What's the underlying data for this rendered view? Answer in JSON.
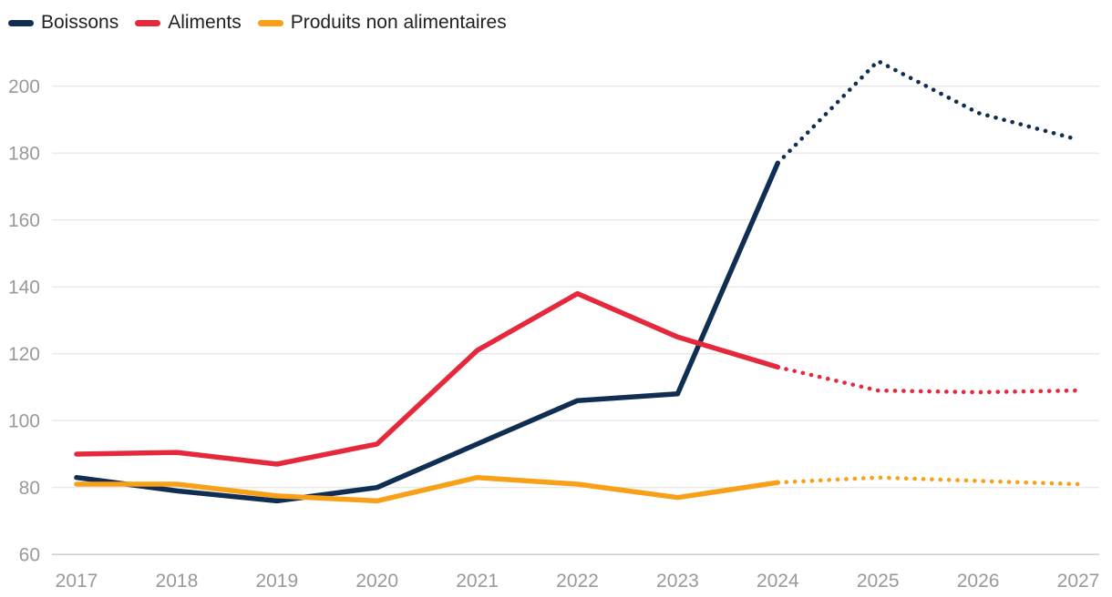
{
  "chart_data": {
    "type": "line",
    "title": "",
    "xlabel": "",
    "ylabel": "",
    "x": [
      2017,
      2018,
      2019,
      2020,
      2021,
      2022,
      2023,
      2024,
      2025,
      2026,
      2027
    ],
    "x_labels": [
      "2017",
      "2018",
      "2019",
      "2020",
      "2021",
      "2022",
      "2023",
      "2024",
      "2025",
      "2026",
      "2027"
    ],
    "yticks": [
      60,
      80,
      100,
      120,
      140,
      160,
      180,
      200
    ],
    "ylim": [
      60,
      212
    ],
    "grid": "horizontal",
    "legend_position": "top-left",
    "forecast_note": "dotted segments from 2024 to 2027 are projections",
    "series": [
      {
        "name": "Boissons",
        "color": "#102d52",
        "values": [
          83,
          79,
          76,
          80,
          93,
          106,
          108,
          177,
          207.5,
          192,
          184
        ],
        "solid_until_index": 7
      },
      {
        "name": "Aliments",
        "color": "#e6283c",
        "values": [
          90,
          90.5,
          87,
          93,
          121,
          138,
          125,
          116,
          109,
          108.5,
          109
        ],
        "solid_until_index": 7
      },
      {
        "name": "Produits non alimentaires",
        "color": "#f9a019",
        "values": [
          81,
          81,
          77.5,
          76,
          83,
          81,
          77,
          81.5,
          83,
          82,
          81
        ],
        "solid_until_index": 7
      }
    ]
  },
  "colors": {
    "background": "#ffffff",
    "gridline": "#e8e8e8",
    "baseline": "#c9c9c9",
    "tick_label": "#999999",
    "legend_text": "#212121"
  }
}
